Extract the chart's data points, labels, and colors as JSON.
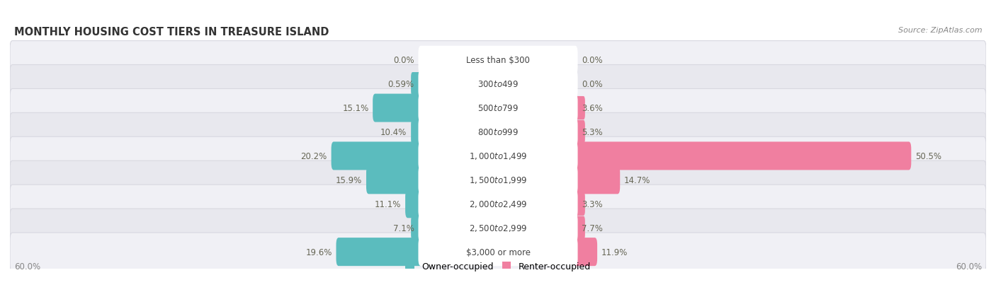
{
  "title": "MONTHLY HOUSING COST TIERS IN TREASURE ISLAND",
  "source": "Source: ZipAtlas.com",
  "categories": [
    "Less than $300",
    "$300 to $499",
    "$500 to $799",
    "$800 to $999",
    "$1,000 to $1,499",
    "$1,500 to $1,999",
    "$2,000 to $2,499",
    "$2,500 to $2,999",
    "$3,000 or more"
  ],
  "owner_values": [
    0.0,
    0.59,
    15.1,
    10.4,
    20.2,
    15.9,
    11.1,
    7.1,
    19.6
  ],
  "renter_values": [
    0.0,
    0.0,
    3.6,
    5.3,
    50.5,
    14.7,
    3.3,
    7.7,
    11.9
  ],
  "owner_color": "#5bbcbe",
  "renter_color": "#f07fa0",
  "axis_max": 60.0,
  "axis_label": "60.0%",
  "title_fontsize": 10.5,
  "source_fontsize": 8,
  "value_fontsize": 8.5,
  "category_fontsize": 8.5,
  "legend_fontsize": 9,
  "row_colors": [
    "#f0f0f5",
    "#e8e8ee"
  ],
  "row_edge_color": "#d8d8e0"
}
